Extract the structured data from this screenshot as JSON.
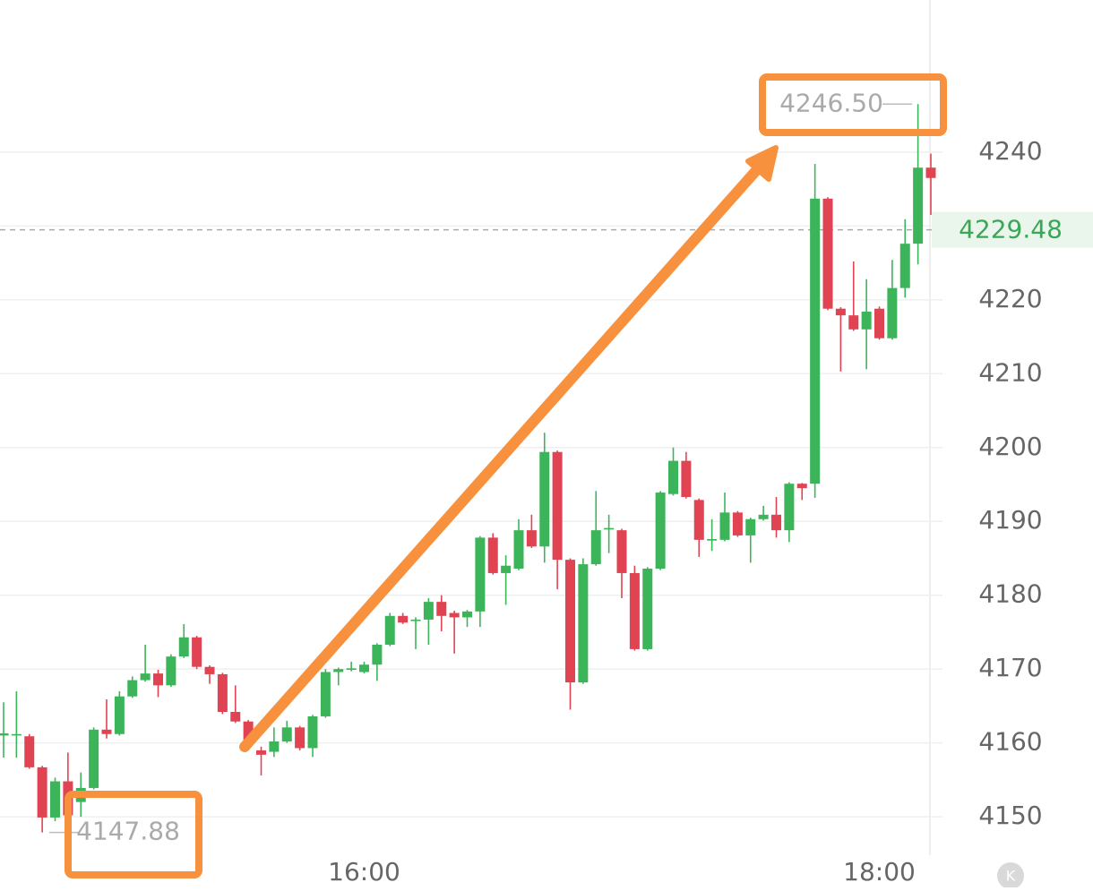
{
  "chart_data": {
    "type": "candlestick",
    "categories": [
      null,
      null,
      null,
      null,
      null,
      null,
      null,
      null,
      null,
      null,
      null,
      null,
      null,
      null,
      null,
      null,
      null,
      null,
      null,
      null,
      null,
      null,
      null,
      null,
      null,
      null,
      null,
      null,
      "16:00",
      null,
      null,
      null,
      null,
      null,
      null,
      null,
      null,
      null,
      null,
      null,
      null,
      null,
      null,
      null,
      null,
      null,
      null,
      null,
      null,
      null,
      null,
      null,
      null,
      null,
      null,
      null,
      null,
      null,
      null,
      null,
      null,
      null,
      null,
      null,
      null,
      null,
      null,
      null,
      "18:00",
      null,
      null,
      null,
      null
    ],
    "open": [
      4161,
      4161,
      4160.9,
      4156.7,
      4149.9,
      4154.8,
      4152,
      4153.9,
      4161.8,
      4161.2,
      4166.3,
      4168.5,
      4169.4,
      4167.8,
      4171.7,
      4174.3,
      4170.3,
      4169.3,
      4164.2,
      4162.9,
      4159,
      4158.8,
      4160.2,
      4162.1,
      4159.3,
      4163.6,
      4169.6,
      4169.9,
      4169.6,
      4170.6,
      4173.3,
      4177.2,
      4176.5,
      4176.7,
      4179.1,
      4177.6,
      4177,
      4177.8,
      4187.8,
      4183,
      4183.6,
      4188.8,
      4186.6,
      4199.4,
      4184.8,
      4168.2,
      4184.2,
      4188.9,
      4188.8,
      4183,
      4172.7,
      4183.6,
      4193.7,
      4198.2,
      4192.9,
      4187.4,
      4187.5,
      4191.2,
      4188.1,
      4190.3,
      4190.9,
      4188.8,
      4195.1,
      4195.1,
      4233.7,
      4218.8,
      4217.9,
      4216,
      4218.8,
      4214.8,
      4221.6,
      4227.6,
      4237.9
    ],
    "high": [
      4165.5,
      4167,
      4161.2,
      4156.9,
      4155.3,
      4158.7,
      4156,
      4162.1,
      4165.9,
      4167,
      4169,
      4173.3,
      4169.9,
      4172,
      4176.1,
      4174.5,
      4170.5,
      4169.5,
      4167.8,
      4163.1,
      4159.5,
      4162.1,
      4163,
      4162.3,
      4163.8,
      4170,
      4170.2,
      4171,
      4171,
      4173.5,
      4177.6,
      4177.6,
      4177,
      4179.6,
      4180,
      4177.9,
      4178,
      4188,
      4188.4,
      4185.4,
      4190.3,
      4190.9,
      4202,
      4199.6,
      4185,
      4185,
      4194.1,
      4190.9,
      4189,
      4184,
      4183.8,
      4194.1,
      4200,
      4199.4,
      4193.1,
      4190.3,
      4193.9,
      4191.4,
      4190.5,
      4192.1,
      4193.3,
      4195.3,
      4195.2,
      4238.4,
      4233.9,
      4219,
      4225.2,
      4222.8,
      4219.1,
      4225.4,
      4230.9,
      4246.5,
      4239.8
    ],
    "low": [
      4158,
      4158,
      4156.5,
      4147.88,
      4149.4,
      4149.6,
      4150,
      4153.7,
      4160.6,
      4161,
      4166.1,
      4168.3,
      4166.2,
      4167.6,
      4171.5,
      4170,
      4168,
      4163.9,
      4162.7,
      4159,
      4155.6,
      4158.1,
      4160,
      4159,
      4158.1,
      4163.4,
      4167.8,
      4169.7,
      4169.4,
      4168.4,
      4173.1,
      4176.1,
      4172.7,
      4173.3,
      4175.1,
      4172.1,
      4175.7,
      4175.7,
      4182.8,
      4178.7,
      4183.4,
      4186.4,
      4184.4,
      4180.8,
      4164.5,
      4168,
      4184,
      4185.7,
      4179.6,
      4172.5,
      4172.5,
      4183.4,
      4193.5,
      4193.1,
      4185.2,
      4186,
      4187.3,
      4187.9,
      4184.4,
      4190.1,
      4187.8,
      4187.2,
      4192.9,
      4193.2,
      4218.6,
      4210.3,
      4215.8,
      4210.6,
      4214.6,
      4214.6,
      4220.3,
      4224.8,
      4231.5
    ],
    "close": [
      4161.3,
      4161.2,
      4156.7,
      4149.9,
      4154.8,
      4150.2,
      4153.9,
      4161.8,
      4161.2,
      4166.3,
      4168.5,
      4169.4,
      4167.8,
      4171.7,
      4174.3,
      4170.3,
      4169.3,
      4164.2,
      4162.9,
      4160,
      4158.4,
      4160.2,
      4162.1,
      4159.3,
      4163.6,
      4169.6,
      4170,
      4170.1,
      4170.6,
      4173.3,
      4177.2,
      4176.3,
      4176.7,
      4179.1,
      4177.2,
      4177,
      4177.8,
      4187.8,
      4183,
      4184,
      4188.8,
      4186.6,
      4199.4,
      4184.8,
      4168.2,
      4184.2,
      4188.8,
      4189.1,
      4183,
      4172.7,
      4183.6,
      4193.9,
      4198.2,
      4193.3,
      4187.5,
      4187.6,
      4191.2,
      4188.1,
      4190.3,
      4190.9,
      4188.8,
      4195.1,
      4194.5,
      4233.7,
      4218.8,
      4217.9,
      4216,
      4218.4,
      4214.8,
      4221.6,
      4227.6,
      4237.9,
      4236.5
    ],
    "up_color": "#3cb55a",
    "down_color": "#e04453",
    "ylim": [
      4144.8,
      4260.6
    ],
    "yticks": [
      4150,
      4160,
      4170,
      4180,
      4190,
      4200,
      4210,
      4220,
      4230,
      4240
    ],
    "ytick_labels_shown": [
      4150,
      4160,
      4170,
      4180,
      4190,
      4200,
      4210,
      4220,
      4240
    ],
    "grid": true,
    "last_price": 4229.48,
    "annotations": [
      {
        "value": 4246.5,
        "label": "4246.50"
      },
      {
        "value": 4147.88,
        "label": "4147.88"
      }
    ]
  },
  "ui": {
    "kline_button": "K"
  }
}
